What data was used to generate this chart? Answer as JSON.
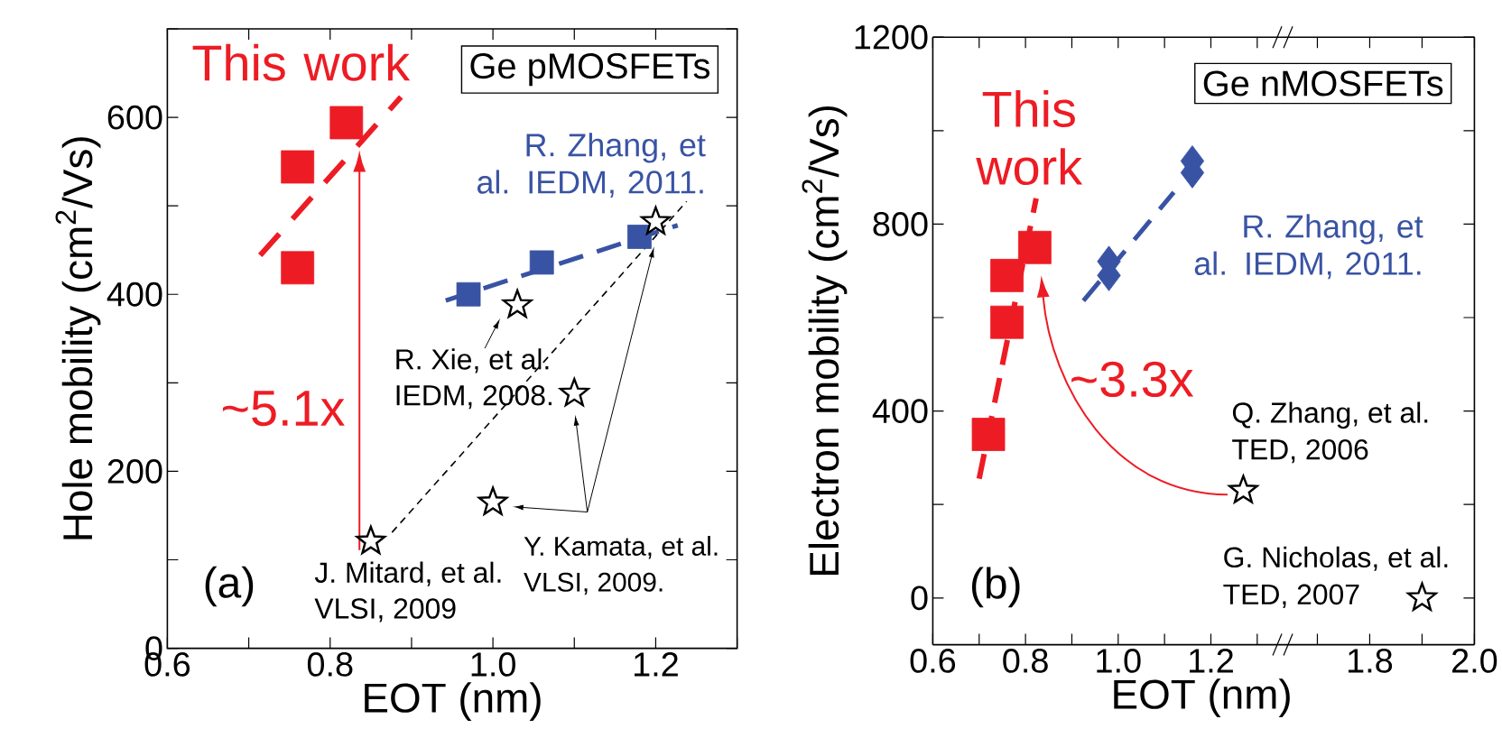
{
  "chart_data": [
    {
      "type": "scatter",
      "xlabel": "EOT (nm)",
      "ylabel": "Hole mobility (cm$^{2}$/Vs)",
      "xlim": [
        0.6,
        1.3
      ],
      "ylim": [
        0,
        700
      ],
      "xticks": [
        0.6,
        {
          "value": 0.7,
          "label": null
        },
        0.8,
        {
          "value": 0.9,
          "label": null
        },
        {
          "value": 1,
          "label": "1.0"
        },
        {
          "value": 1.1,
          "label": null
        },
        1.2,
        {
          "value": 1.3,
          "label": null
        }
      ],
      "yticks": [
        0,
        {
          "value": 100,
          "label": null
        },
        200,
        {
          "value": 300,
          "label": null
        },
        400,
        {
          "value": 500,
          "label": null
        },
        600,
        {
          "value": 700,
          "label": null
        }
      ],
      "series": [
        {
          "name": "This work",
          "marker": "square",
          "color": "#ed1c24",
          "x": [
            0.76,
            0.76,
            0.82
          ],
          "values": [
            430,
            544,
            594
          ]
        },
        {
          "type": "line",
          "line_style": "dashed",
          "color": "#ed1c24",
          "x": [
            0.714,
            0.887
          ],
          "values": [
            444,
            623
          ]
        },
        {
          "name": "R. Zhang, et al. IEDM, 2011.",
          "marker": "square",
          "color": "#3953a4",
          "x": [
            0.97,
            1.06,
            1.18
          ],
          "values": [
            400,
            436,
            465
          ]
        },
        {
          "type": "line",
          "line_style": "dashed",
          "color": "#3953a4",
          "x": [
            0.942,
            1.227
          ],
          "values": [
            393,
            478
          ]
        },
        {
          "type": "line",
          "line_style": "dashed",
          "color": "#000000",
          "x": [
            0.876,
            1.238
          ],
          "values": [
            131,
            505
          ]
        },
        {
          "marker": "star",
          "color": "#000000",
          "x": [
            0.85,
            1.03,
            1.1,
            1,
            1.2
          ],
          "values": [
            121,
            388,
            288,
            165,
            482
          ]
        }
      ],
      "annotations": [
        "Ge pMOSFETs",
        "(a)",
        "~5.1x",
        "J. Mitard, et al.",
        "VLSI, 2009",
        "R. Xie, et al.",
        "IEDM, 2008.",
        "Y. Kamata, et al.",
        "VLSI, 2009."
      ]
    },
    {
      "type": "scatter",
      "xlabel": "EOT (nm)",
      "ylabel": "Electron mobility (cm$^{2}$/Vs)",
      "xlim": [
        0.6,
        1.353
      ],
      "ylim": [
        -100,
        1200
      ],
      "xticks": [
        0.6,
        {
          "value": 0.7,
          "label": null
        },
        0.8,
        {
          "value": 0.9,
          "label": null
        },
        {
          "value": 1,
          "label": "1.0"
        },
        {
          "value": 1.1,
          "label": null
        },
        1.2,
        {
          "value": 1.3,
          "label": null
        }
      ],
      "yticks": [
        0,
        {
          "value": 200,
          "label": null
        },
        400,
        {
          "value": 600,
          "label": null
        },
        800,
        {
          "value": 1000,
          "label": null
        },
        1200
      ],
      "series": [
        {
          "type": "line",
          "line_style": "dashed",
          "color": "#ed1c24",
          "x": [
            0.7,
            0.823
          ],
          "values": [
            255,
            855
          ]
        },
        {
          "name": "This work",
          "marker": "square",
          "color": "#ed1c24",
          "x": [
            0.72,
            0.76,
            0.76,
            0.82
          ],
          "values": [
            350,
            590,
            690,
            750
          ]
        },
        {
          "type": "line",
          "line_style": "dashed",
          "color": "#3953a4",
          "x": [
            0.925,
            1.12
          ],
          "values": [
            636,
            868
          ]
        },
        {
          "name": "R. Zhang, et al. IEDM, 2011.",
          "marker": "diamond",
          "color": "#3953a4",
          "x": [
            0.98,
            0.98,
            1.16,
            1.16
          ],
          "values": [
            690,
            720,
            910,
            935
          ]
        },
        {
          "marker": "star",
          "color": "#000000",
          "x": [
            1.27
          ],
          "values": [
            230
          ]
        }
      ],
      "annotations": [
        "Ge nMOSFETs",
        "(b)",
        "~3.3x",
        "Q. Zhang, et al.",
        "TED, 2006",
        "G. Nicholas, et al.",
        "TED, 2007"
      ]
    },
    {
      "type": "scatter",
      "xlim": [
        1.632,
        2.0
      ],
      "ylim": [
        -100,
        1200
      ],
      "tick_labels": "x",
      "xticks": [
        {
          "value": 1.7,
          "label": null
        },
        1.8,
        {
          "value": 1.9,
          "label": null
        },
        {
          "value": 2,
          "label": "2.0"
        }
      ],
      "yticks": [
        0,
        {
          "value": 200,
          "label": null
        },
        400,
        {
          "value": 600,
          "label": null
        },
        800,
        {
          "value": 1000,
          "label": null
        },
        1200
      ],
      "series": [
        {
          "marker": "star",
          "color": "#000000",
          "x": [
            1.9
          ],
          "values": [
            0
          ]
        }
      ]
    }
  ]
}
